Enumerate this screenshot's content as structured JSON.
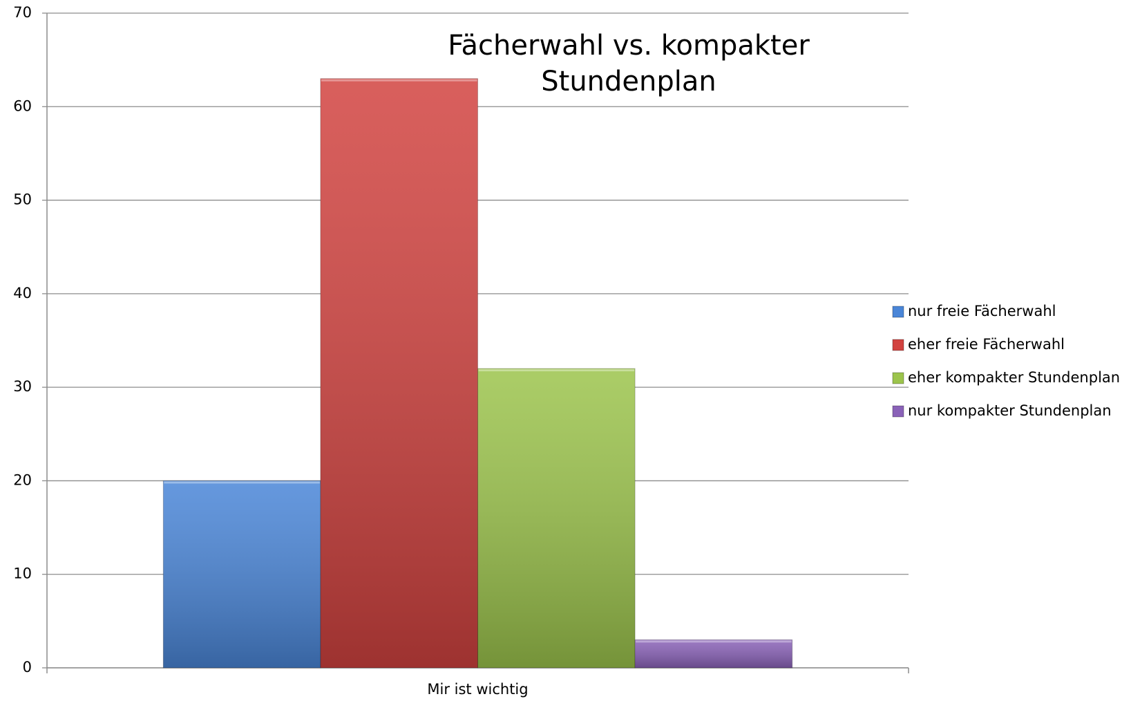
{
  "chart_data": {
    "type": "bar",
    "title": "Fächerwahl vs. kompakter Stundenplan",
    "categories": [
      "Mir ist wichtig"
    ],
    "series": [
      {
        "name": "nur freie Fächerwahl",
        "color": "#4a86d8",
        "values": [
          20
        ]
      },
      {
        "name": "eher freie Fächerwahl",
        "color": "#d24340",
        "values": [
          63
        ]
      },
      {
        "name": "eher kompakter Stundenplan",
        "color": "#9cc44c",
        "values": [
          32
        ]
      },
      {
        "name": "nur kompakter Stundenplan",
        "color": "#8a62b8",
        "values": [
          3
        ]
      }
    ],
    "ylim": [
      0,
      70
    ],
    "yticks": [
      0,
      10,
      20,
      30,
      40,
      50,
      60,
      70
    ],
    "grid": true,
    "legend": "right"
  }
}
